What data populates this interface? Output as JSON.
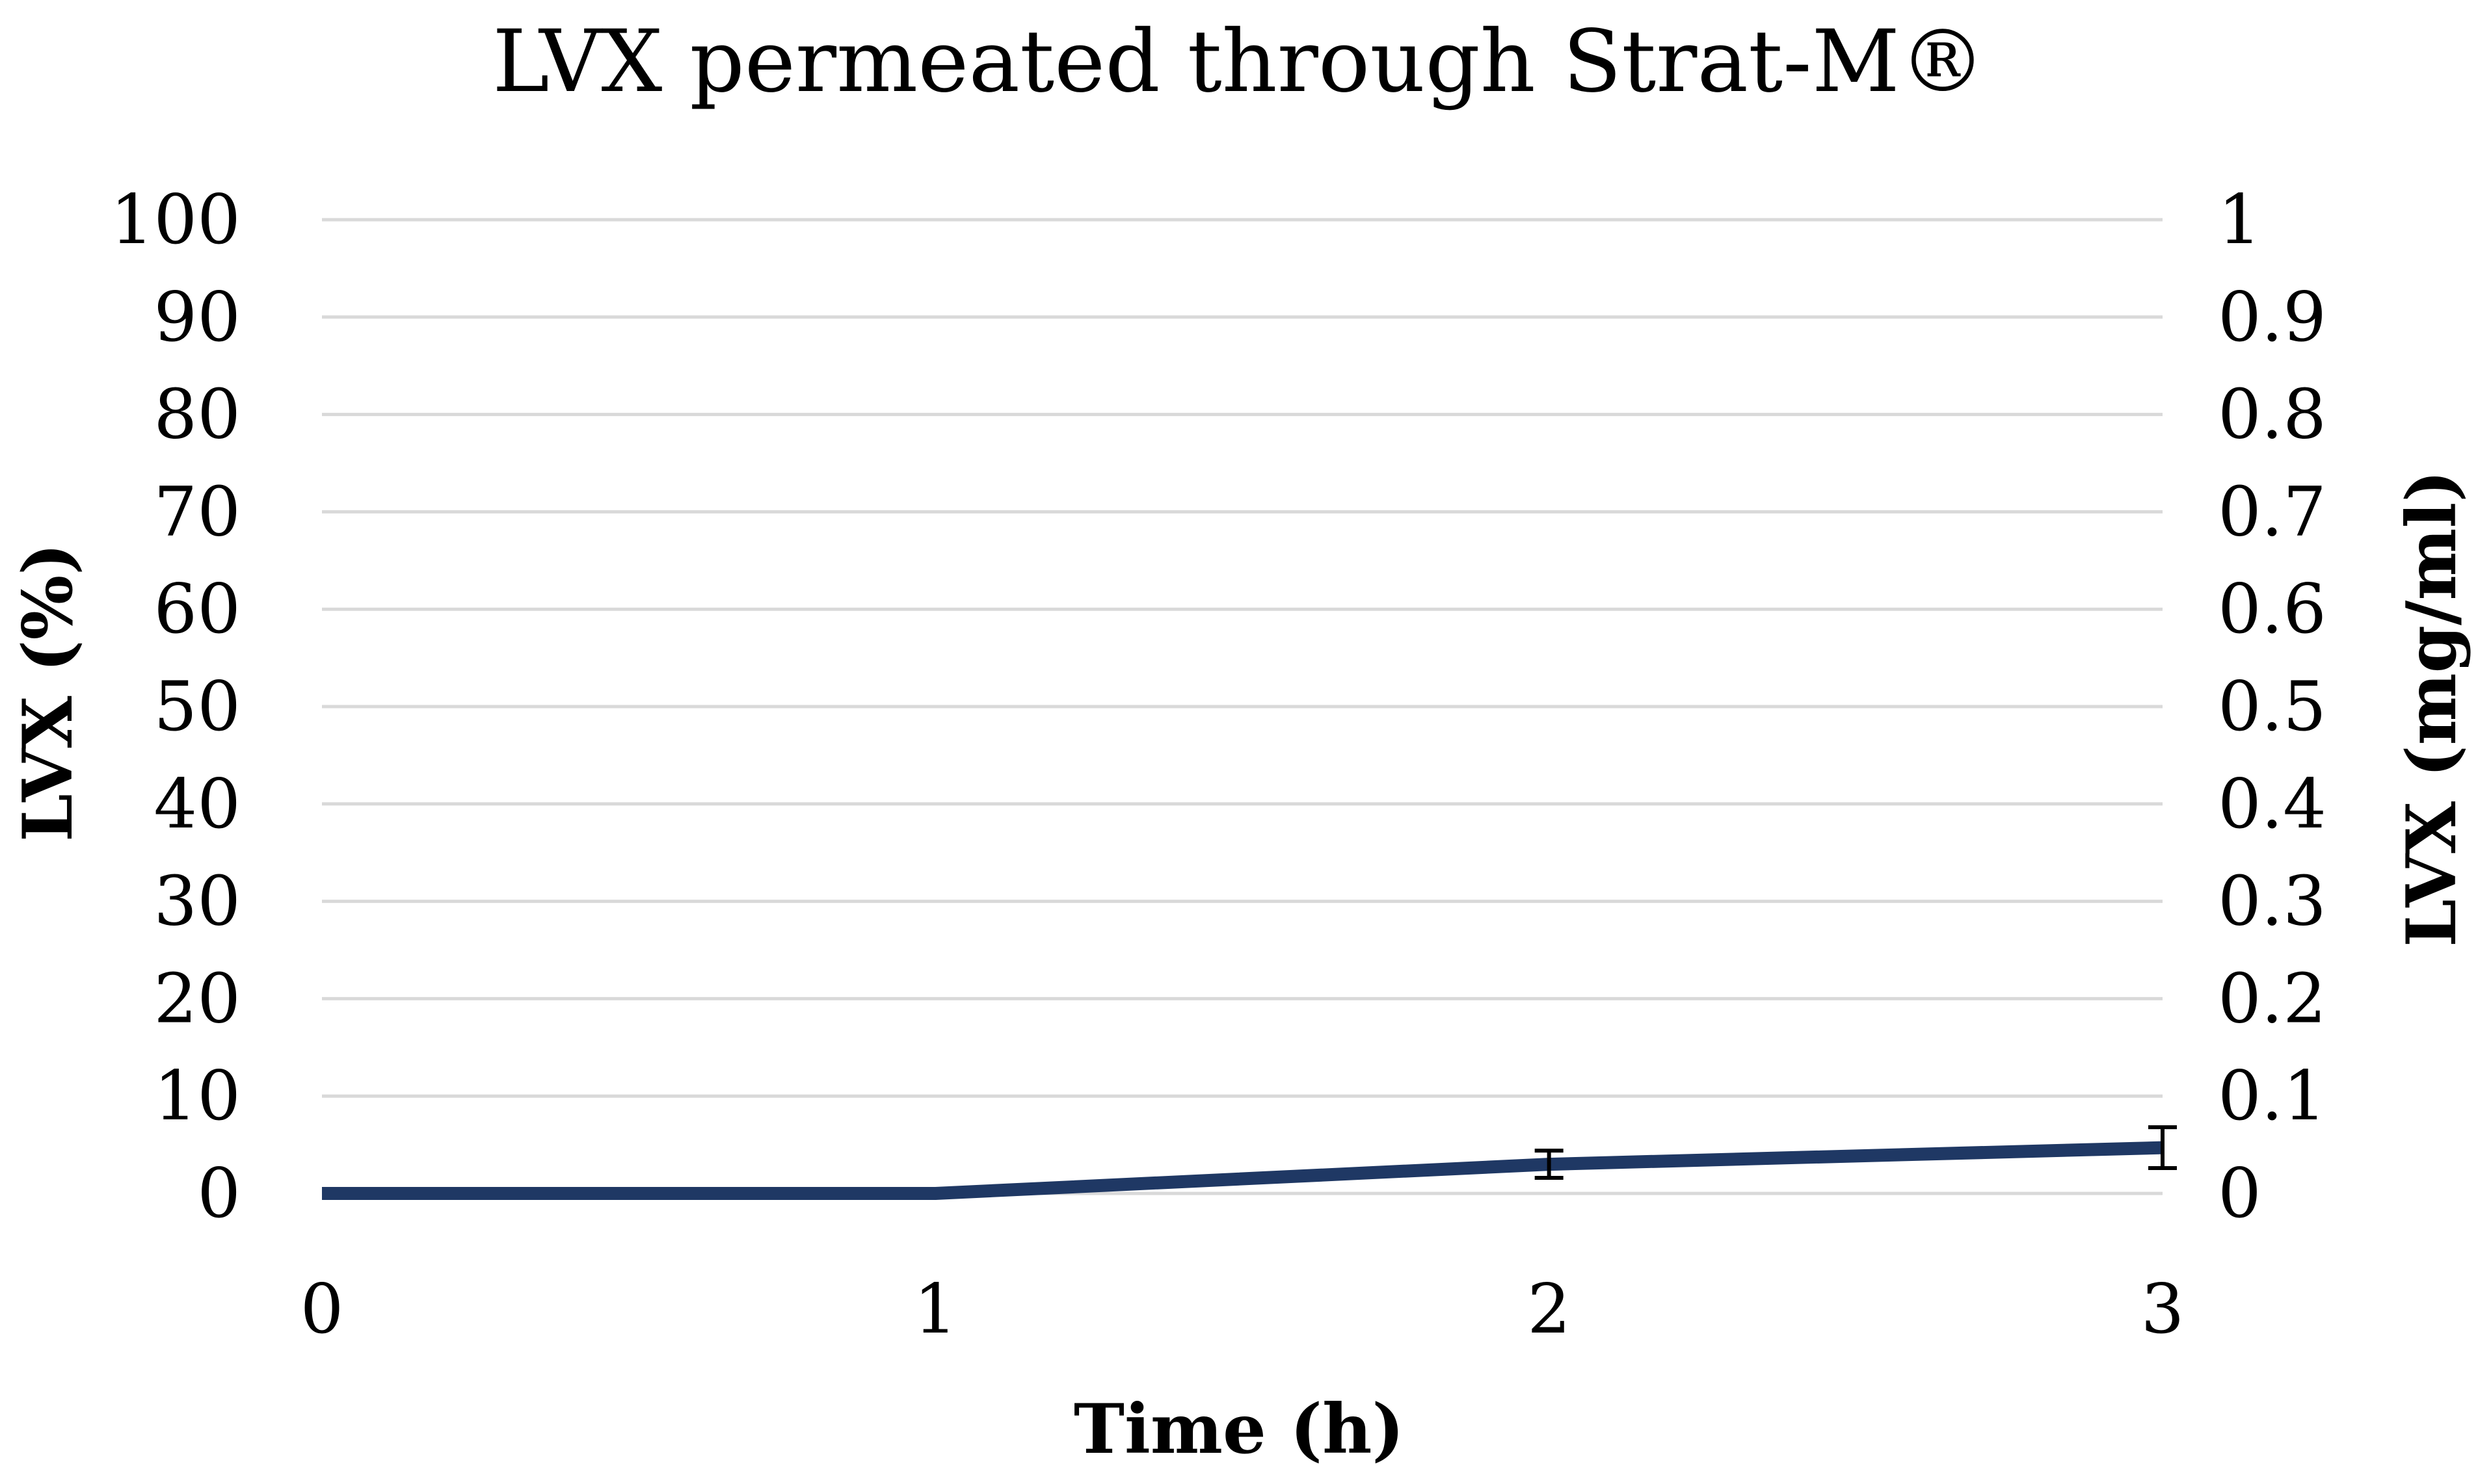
{
  "colors": {
    "series": "#1f3864",
    "grid": "#d9d9d9",
    "text": "#000000",
    "background": "#ffffff"
  },
  "chart_data": {
    "type": "line",
    "title": "LVX permeated through Strat-M®",
    "xlabel": "Time (h)",
    "ylabel": "LVX (%)",
    "y2label": "LVX (mg/ml)",
    "x": [
      0,
      1,
      2,
      3
    ],
    "x_ticks": [
      "0",
      "1",
      "2",
      "3"
    ],
    "xlim": [
      0,
      3
    ],
    "ylim": [
      0,
      100
    ],
    "y_ticks": [
      "0",
      "10",
      "20",
      "30",
      "40",
      "50",
      "60",
      "70",
      "80",
      "90",
      "100"
    ],
    "y2lim": [
      0,
      1
    ],
    "y2_ticks": [
      "0",
      "0.1",
      "0.2",
      "0.3",
      "0.4",
      "0.5",
      "0.6",
      "0.7",
      "0.8",
      "0.9",
      "1"
    ],
    "grid": true,
    "legend": "none",
    "series": [
      {
        "values": [
          0,
          0,
          3,
          4.7
        ],
        "error": [
          0,
          0,
          1.4,
          2.1
        ]
      }
    ]
  }
}
